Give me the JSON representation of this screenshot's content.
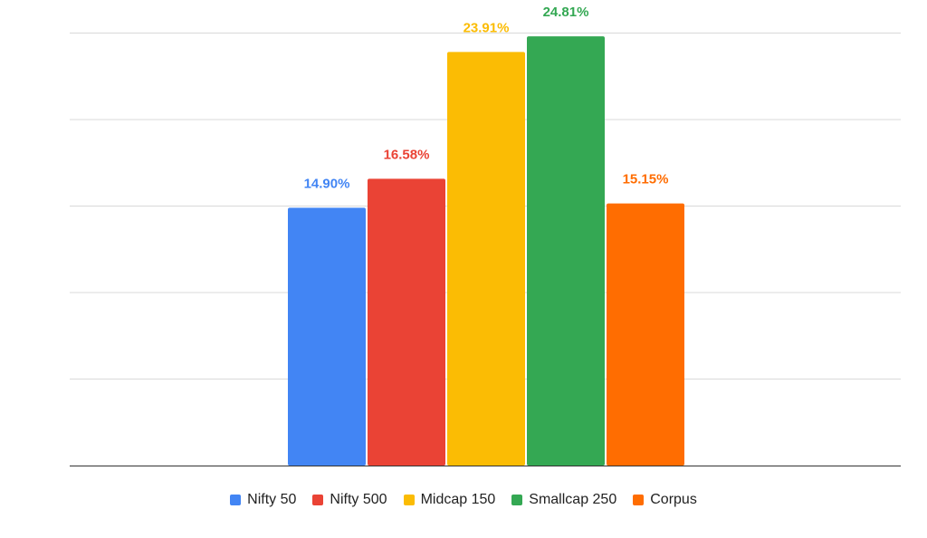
{
  "chart_data": {
    "type": "bar",
    "categories": [
      "Nifty 50",
      "Nifty 500",
      "Midcap 150",
      "Smallcap 250",
      "Corpus"
    ],
    "values": [
      14.9,
      16.58,
      23.91,
      24.81,
      15.15
    ],
    "data_labels": [
      "14.90%",
      "16.58%",
      "23.91%",
      "24.81%",
      "15.15%"
    ],
    "colors": [
      "#4285F4",
      "#EA4335",
      "#FBBC04",
      "#34A853",
      "#FF6D01"
    ],
    "title": "",
    "xlabel": "",
    "ylabel": "",
    "ylim": [
      0,
      25
    ],
    "grid": true,
    "legend_position": "bottom"
  },
  "legend": {
    "items": [
      {
        "label": "Nifty 50",
        "color": "#4285F4"
      },
      {
        "label": "Nifty 500",
        "color": "#EA4335"
      },
      {
        "label": "Midcap 150",
        "color": "#FBBC04"
      },
      {
        "label": "Smallcap 250",
        "color": "#34A853"
      },
      {
        "label": "Corpus",
        "color": "#FF6D01"
      }
    ]
  }
}
